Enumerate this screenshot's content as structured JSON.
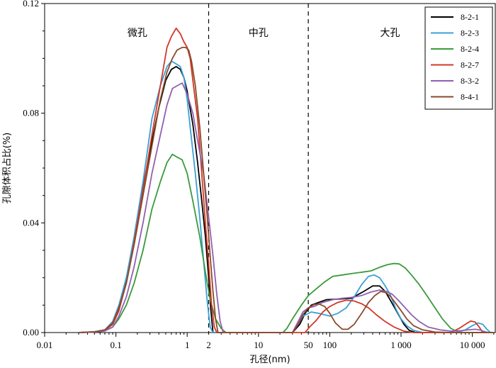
{
  "chart_data": {
    "type": "line",
    "xlabel": "孔径(nm)",
    "ylabel": "孔隙体积占比(%)",
    "x_scale": "log",
    "xlim": [
      0.01,
      21000
    ],
    "ylim": [
      0,
      0.12
    ],
    "y_ticks": [
      0.0,
      0.04,
      0.08,
      0.12
    ],
    "y_tick_labels": [
      "0.00",
      "0.04",
      "0.08",
      "0.12"
    ],
    "x_ticks": [
      0.01,
      0.1,
      1,
      2,
      10,
      50,
      100,
      1000,
      10000
    ],
    "x_tick_labels": [
      "0.01",
      "0.1",
      "1",
      "2",
      "10",
      "50",
      "100",
      "1 000",
      "10 000"
    ],
    "region_boundaries": [
      2,
      50
    ],
    "regions": [
      {
        "label": "微孔",
        "x": 0.2
      },
      {
        "label": "中孔",
        "x": 10
      },
      {
        "label": "大孔",
        "x": 700
      }
    ],
    "legend_position": "top-right",
    "series": [
      {
        "name": "8-2-1",
        "color": "#000000",
        "points": [
          [
            0.03,
            0
          ],
          [
            0.05,
            0.0002
          ],
          [
            0.07,
            0.0008
          ],
          [
            0.09,
            0.003
          ],
          [
            0.11,
            0.008
          ],
          [
            0.13,
            0.016
          ],
          [
            0.17,
            0.03
          ],
          [
            0.22,
            0.048
          ],
          [
            0.3,
            0.066
          ],
          [
            0.4,
            0.082
          ],
          [
            0.5,
            0.092
          ],
          [
            0.6,
            0.096
          ],
          [
            0.7,
            0.097
          ],
          [
            0.8,
            0.096
          ],
          [
            0.9,
            0.093
          ],
          [
            1.0,
            0.088
          ],
          [
            1.2,
            0.076
          ],
          [
            1.4,
            0.062
          ],
          [
            1.6,
            0.048
          ],
          [
            1.8,
            0.035
          ],
          [
            2.0,
            0.02
          ],
          [
            2.15,
            0.008
          ],
          [
            2.3,
            0.0
          ],
          [
            10,
            0
          ],
          [
            30,
            0
          ],
          [
            38,
            0.003
          ],
          [
            45,
            0.007
          ],
          [
            55,
            0.01
          ],
          [
            70,
            0.011
          ],
          [
            90,
            0.012
          ],
          [
            130,
            0.0122
          ],
          [
            200,
            0.0125
          ],
          [
            300,
            0.015
          ],
          [
            400,
            0.017
          ],
          [
            500,
            0.017
          ],
          [
            600,
            0.015
          ],
          [
            700,
            0.012
          ],
          [
            900,
            0.007
          ],
          [
            1100,
            0.003
          ],
          [
            1300,
            0.0008
          ],
          [
            1600,
            0
          ],
          [
            20000,
            0
          ]
        ]
      },
      {
        "name": "8-2-3",
        "color": "#3aa0d8",
        "points": [
          [
            0.03,
            0
          ],
          [
            0.05,
            0.0003
          ],
          [
            0.07,
            0.001
          ],
          [
            0.09,
            0.004
          ],
          [
            0.11,
            0.01
          ],
          [
            0.14,
            0.02
          ],
          [
            0.18,
            0.035
          ],
          [
            0.24,
            0.055
          ],
          [
            0.32,
            0.078
          ],
          [
            0.42,
            0.09
          ],
          [
            0.52,
            0.097
          ],
          [
            0.6,
            0.099
          ],
          [
            0.7,
            0.098
          ],
          [
            0.8,
            0.097
          ],
          [
            0.9,
            0.093
          ],
          [
            1.0,
            0.085
          ],
          [
            1.1,
            0.075
          ],
          [
            1.3,
            0.058
          ],
          [
            1.5,
            0.042
          ],
          [
            1.7,
            0.026
          ],
          [
            1.9,
            0.012
          ],
          [
            2.1,
            0.002
          ],
          [
            2.3,
            0
          ],
          [
            10,
            0
          ],
          [
            30,
            0
          ],
          [
            36,
            0.003
          ],
          [
            42,
            0.006
          ],
          [
            55,
            0.0075
          ],
          [
            70,
            0.007
          ],
          [
            100,
            0.006
          ],
          [
            130,
            0.007
          ],
          [
            170,
            0.009
          ],
          [
            220,
            0.013
          ],
          [
            280,
            0.0175
          ],
          [
            350,
            0.0205
          ],
          [
            420,
            0.021
          ],
          [
            500,
            0.02
          ],
          [
            600,
            0.017
          ],
          [
            700,
            0.014
          ],
          [
            850,
            0.0085
          ],
          [
            1000,
            0.005
          ],
          [
            1200,
            0.0025
          ],
          [
            1500,
            0.0008
          ],
          [
            2000,
            0
          ],
          [
            6000,
            0
          ],
          [
            8000,
            0.001
          ],
          [
            10000,
            0.0025
          ],
          [
            12000,
            0.0035
          ],
          [
            14000,
            0.003
          ],
          [
            16000,
            0.0012
          ],
          [
            18000,
            0
          ],
          [
            20000,
            0
          ]
        ]
      },
      {
        "name": "8-2-4",
        "color": "#3a9a3a",
        "points": [
          [
            0.03,
            0
          ],
          [
            0.05,
            0.0002
          ],
          [
            0.07,
            0.0006
          ],
          [
            0.09,
            0.002
          ],
          [
            0.11,
            0.005
          ],
          [
            0.14,
            0.01
          ],
          [
            0.18,
            0.018
          ],
          [
            0.24,
            0.03
          ],
          [
            0.32,
            0.045
          ],
          [
            0.42,
            0.055
          ],
          [
            0.52,
            0.062
          ],
          [
            0.62,
            0.065
          ],
          [
            0.72,
            0.064
          ],
          [
            0.85,
            0.063
          ],
          [
            1.0,
            0.058
          ],
          [
            1.2,
            0.048
          ],
          [
            1.5,
            0.035
          ],
          [
            1.8,
            0.022
          ],
          [
            2.1,
            0.012
          ],
          [
            2.5,
            0.005
          ],
          [
            3.0,
            0.0015
          ],
          [
            3.5,
            0
          ],
          [
            10,
            0
          ],
          [
            22,
            0
          ],
          [
            25,
            0.0015
          ],
          [
            30,
            0.005
          ],
          [
            40,
            0.01
          ],
          [
            50,
            0.0135
          ],
          [
            65,
            0.016
          ],
          [
            85,
            0.0185
          ],
          [
            110,
            0.0205
          ],
          [
            150,
            0.021
          ],
          [
            200,
            0.0215
          ],
          [
            280,
            0.022
          ],
          [
            380,
            0.0225
          ],
          [
            500,
            0.0238
          ],
          [
            650,
            0.0248
          ],
          [
            800,
            0.0252
          ],
          [
            950,
            0.025
          ],
          [
            1150,
            0.0235
          ],
          [
            1400,
            0.021
          ],
          [
            1800,
            0.0175
          ],
          [
            2300,
            0.0135
          ],
          [
            3000,
            0.009
          ],
          [
            3800,
            0.005
          ],
          [
            5000,
            0.0015
          ],
          [
            6500,
            0
          ],
          [
            20000,
            0
          ]
        ]
      },
      {
        "name": "8-2-7",
        "color": "#d03828",
        "points": [
          [
            0.03,
            0
          ],
          [
            0.05,
            0.0002
          ],
          [
            0.07,
            0.0008
          ],
          [
            0.09,
            0.003
          ],
          [
            0.11,
            0.008
          ],
          [
            0.14,
            0.018
          ],
          [
            0.18,
            0.033
          ],
          [
            0.24,
            0.052
          ],
          [
            0.32,
            0.072
          ],
          [
            0.42,
            0.09
          ],
          [
            0.52,
            0.104
          ],
          [
            0.6,
            0.108
          ],
          [
            0.7,
            0.111
          ],
          [
            0.8,
            0.109
          ],
          [
            0.9,
            0.106
          ],
          [
            1.0,
            0.104
          ],
          [
            1.1,
            0.1
          ],
          [
            1.2,
            0.092
          ],
          [
            1.4,
            0.078
          ],
          [
            1.6,
            0.058
          ],
          [
            1.8,
            0.04
          ],
          [
            2.0,
            0.025
          ],
          [
            2.2,
            0.01
          ],
          [
            2.4,
            0.002
          ],
          [
            2.6,
            0
          ],
          [
            10,
            0
          ],
          [
            45,
            0
          ],
          [
            52,
            0.002
          ],
          [
            65,
            0.0045
          ],
          [
            80,
            0.0075
          ],
          [
            100,
            0.0095
          ],
          [
            130,
            0.011
          ],
          [
            170,
            0.0118
          ],
          [
            220,
            0.0115
          ],
          [
            280,
            0.0105
          ],
          [
            350,
            0.009
          ],
          [
            450,
            0.0065
          ],
          [
            600,
            0.004
          ],
          [
            800,
            0.002
          ],
          [
            1100,
            0.0005
          ],
          [
            1500,
            0
          ],
          [
            5000,
            0
          ],
          [
            6500,
            0.0015
          ],
          [
            8000,
            0.003
          ],
          [
            9500,
            0.0042
          ],
          [
            11000,
            0.0038
          ],
          [
            12500,
            0.002
          ],
          [
            14000,
            0
          ],
          [
            20000,
            0
          ]
        ]
      },
      {
        "name": "8-3-2",
        "color": "#9060b0",
        "points": [
          [
            0.03,
            0
          ],
          [
            0.05,
            0.0002
          ],
          [
            0.07,
            0.0006
          ],
          [
            0.09,
            0.002
          ],
          [
            0.11,
            0.006
          ],
          [
            0.14,
            0.013
          ],
          [
            0.18,
            0.024
          ],
          [
            0.24,
            0.04
          ],
          [
            0.32,
            0.058
          ],
          [
            0.42,
            0.072
          ],
          [
            0.52,
            0.083
          ],
          [
            0.62,
            0.089
          ],
          [
            0.72,
            0.09
          ],
          [
            0.85,
            0.091
          ],
          [
            1.0,
            0.087
          ],
          [
            1.2,
            0.08
          ],
          [
            1.4,
            0.07
          ],
          [
            1.7,
            0.058
          ],
          [
            2.0,
            0.042
          ],
          [
            2.3,
            0.028
          ],
          [
            2.6,
            0.014
          ],
          [
            2.9,
            0.004
          ],
          [
            3.2,
            0
          ],
          [
            10,
            0
          ],
          [
            30,
            0
          ],
          [
            36,
            0.004
          ],
          [
            42,
            0.0075
          ],
          [
            50,
            0.009
          ],
          [
            60,
            0.0095
          ],
          [
            80,
            0.011
          ],
          [
            110,
            0.012
          ],
          [
            150,
            0.0125
          ],
          [
            200,
            0.0128
          ],
          [
            280,
            0.0135
          ],
          [
            380,
            0.0148
          ],
          [
            500,
            0.0155
          ],
          [
            620,
            0.015
          ],
          [
            750,
            0.014
          ],
          [
            900,
            0.012
          ],
          [
            1100,
            0.0095
          ],
          [
            1400,
            0.0065
          ],
          [
            1800,
            0.004
          ],
          [
            2400,
            0.002
          ],
          [
            3500,
            0.001
          ],
          [
            5000,
            0.0005
          ],
          [
            7000,
            0.0007
          ],
          [
            9000,
            0.001
          ],
          [
            11000,
            0.0012
          ],
          [
            13000,
            0.0009
          ],
          [
            15000,
            0.0003
          ],
          [
            17000,
            0
          ],
          [
            20000,
            0
          ]
        ]
      },
      {
        "name": "8-4-1",
        "color": "#8a4a2a",
        "points": [
          [
            0.03,
            0
          ],
          [
            0.05,
            0.0003
          ],
          [
            0.07,
            0.001
          ],
          [
            0.09,
            0.0035
          ],
          [
            0.11,
            0.009
          ],
          [
            0.14,
            0.018
          ],
          [
            0.18,
            0.032
          ],
          [
            0.24,
            0.05
          ],
          [
            0.32,
            0.068
          ],
          [
            0.42,
            0.085
          ],
          [
            0.52,
            0.095
          ],
          [
            0.62,
            0.1
          ],
          [
            0.72,
            0.103
          ],
          [
            0.85,
            0.104
          ],
          [
            0.95,
            0.104
          ],
          [
            1.05,
            0.103
          ],
          [
            1.15,
            0.099
          ],
          [
            1.3,
            0.09
          ],
          [
            1.5,
            0.075
          ],
          [
            1.7,
            0.058
          ],
          [
            1.9,
            0.043
          ],
          [
            2.1,
            0.028
          ],
          [
            2.3,
            0.015
          ],
          [
            2.5,
            0.005
          ],
          [
            2.7,
            0
          ],
          [
            10,
            0
          ],
          [
            30,
            0
          ],
          [
            36,
            0.003
          ],
          [
            42,
            0.0065
          ],
          [
            50,
            0.009
          ],
          [
            60,
            0.0102
          ],
          [
            70,
            0.0105
          ],
          [
            85,
            0.0095
          ],
          [
            100,
            0.007
          ],
          [
            120,
            0.0035
          ],
          [
            150,
            0.0012
          ],
          [
            180,
            0.0012
          ],
          [
            220,
            0.003
          ],
          [
            280,
            0.007
          ],
          [
            350,
            0.011
          ],
          [
            430,
            0.0135
          ],
          [
            520,
            0.015
          ],
          [
            620,
            0.0145
          ],
          [
            720,
            0.013
          ],
          [
            850,
            0.0105
          ],
          [
            1000,
            0.008
          ],
          [
            1200,
            0.005
          ],
          [
            1500,
            0.0025
          ],
          [
            2000,
            0.001
          ],
          [
            3000,
            0.0002
          ],
          [
            5000,
            0
          ],
          [
            20000,
            0
          ]
        ]
      }
    ]
  }
}
